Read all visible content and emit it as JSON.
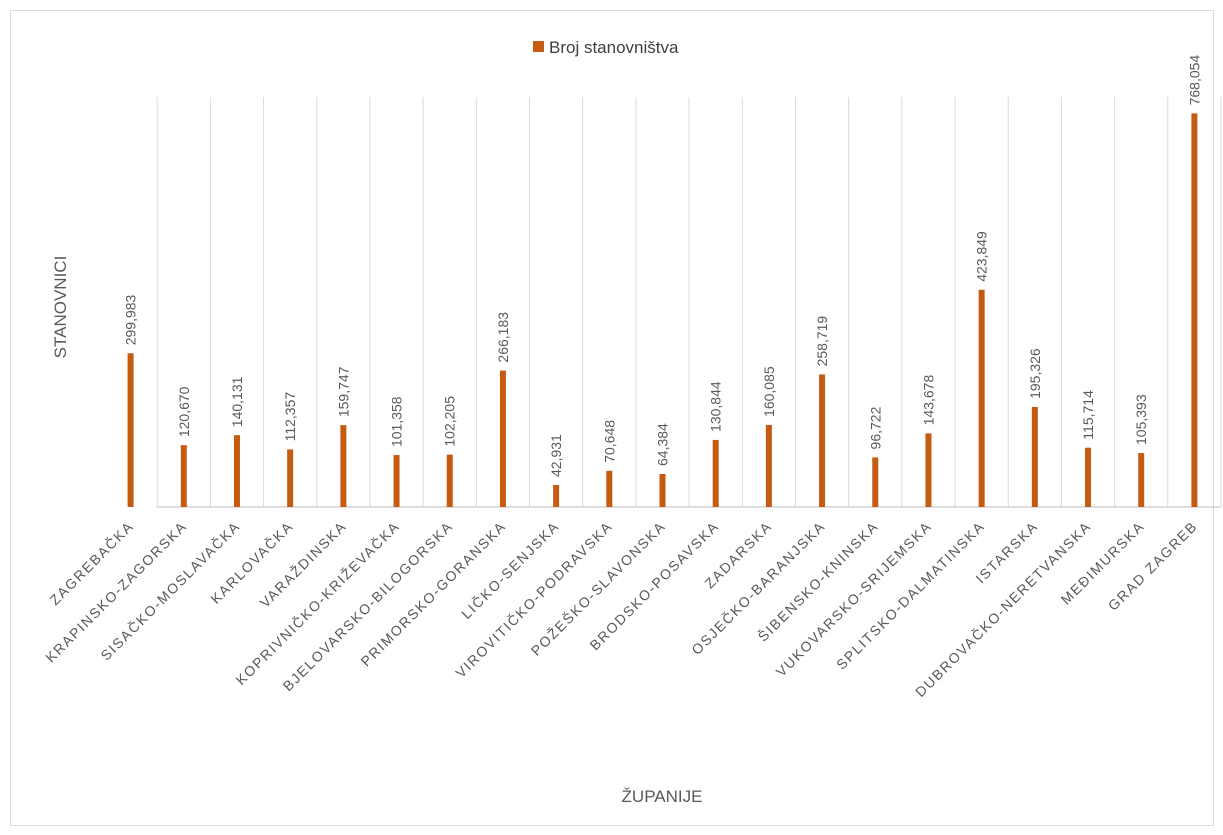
{
  "chart_data": {
    "type": "bar",
    "title": "",
    "xlabel": "ŽUPANIJE",
    "ylabel": "STANOVNICI",
    "legend": "top",
    "grid": true,
    "ylim": [
      0,
      800000
    ],
    "categories": [
      "ZAGREBAČKA",
      "KRAPINSKO-ZAGORSKA",
      "SISAČKO-MOSLAVAČKA",
      "KARLOVAČKA",
      "VARAŽDINSKA",
      "KOPRIVNIČKO-KRIŽEVAČKA",
      "BJELOVARSKO-BILOGORSKA",
      "PRIMORSKO-GORANSKA",
      "LIČKO-SENJSKA",
      "VIROVITIČKO-PODRAVSKA",
      "POŽEŠKO-SLAVONSKA",
      "BRODSKO-POSAVSKA",
      "ZADARSKA",
      "OSJEČKO-BARANJSKA",
      "ŠIBENSKO-KNINSKA",
      "VUKOVARSKO-SRIJEMSKA",
      "SPLITSKO-DALMATINSKA",
      "ISTARSKA",
      "DUBROVAČKO-NERETVANSKA",
      "MEĐIMURSKA",
      "GRAD ZAGREB"
    ],
    "series": [
      {
        "name": "Broj stanovništva",
        "color": "#c55a11",
        "values": [
          299983,
          120670,
          140131,
          112357,
          159747,
          101358,
          102205,
          266183,
          42931,
          70648,
          64384,
          130844,
          160085,
          258719,
          96722,
          143678,
          423849,
          195326,
          115714,
          105393,
          768054
        ],
        "labels": [
          "299,983",
          "120,670",
          "140,131",
          "112,357",
          "159,747",
          "101,358",
          "102,205",
          "266,183",
          "42,931",
          "70,648",
          "64,384",
          "130,844",
          "160,085",
          "258,719",
          "96,722",
          "143,678",
          "423,849",
          "195,326",
          "115,714",
          "105,393",
          "768,054"
        ]
      }
    ]
  }
}
